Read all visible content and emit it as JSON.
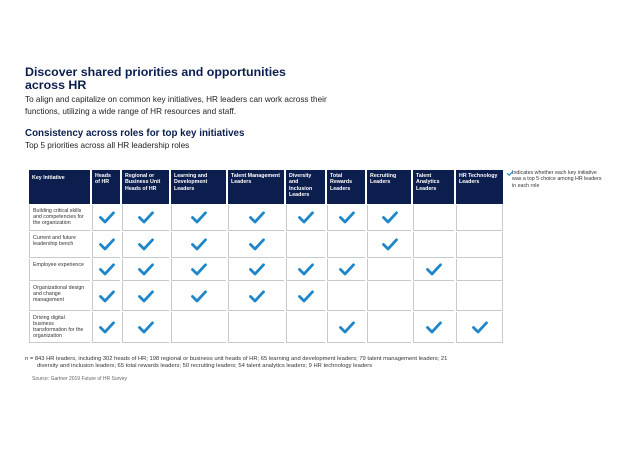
{
  "title": "Discover shared priorities and opportunities across HR",
  "intro": "To align and capitalize on common key initiatives, HR leaders can work across their functions, utilizing a wide range of HR resources and staff.",
  "subtitle": "Consistency across roles for top key initiatives",
  "subtext": "Top 5 priorities across all HR leadership roles",
  "table": {
    "corner": "Key Initiative",
    "columns": [
      "Heads of HR",
      "Regional or Business Unit Heads of HR",
      "Learning and Development Leaders",
      "Talent Management Leaders",
      "Diversity and Inclusion Leaders",
      "Total Rewards Leaders",
      "Recruiting Leaders",
      "Talent Analytics Leaders",
      "HR Technology Leaders"
    ],
    "rows": [
      {
        "label": "Building critical skills and competencies for the organization",
        "checks": [
          true,
          true,
          true,
          true,
          true,
          true,
          true,
          false,
          false
        ]
      },
      {
        "label": "Current and future leadership bench",
        "checks": [
          true,
          true,
          true,
          true,
          false,
          false,
          true,
          false,
          false
        ]
      },
      {
        "label": "Employee experience",
        "checks": [
          true,
          true,
          true,
          true,
          true,
          true,
          false,
          true,
          false
        ]
      },
      {
        "label": "Organizational design and change management",
        "checks": [
          true,
          true,
          true,
          true,
          true,
          false,
          false,
          false,
          false
        ]
      },
      {
        "label": "Driving digital business transformation for the organization",
        "checks": [
          true,
          true,
          false,
          false,
          false,
          true,
          false,
          true,
          true
        ]
      }
    ]
  },
  "legend": "Indicates whether each key initiative was a top 5 choice among HR leaders in each role",
  "footnote_line1": "n = 843 HR leaders, including 302 heads of HR; 198 regional or business unit heads of HR; 65 learning and development leaders; 79 talent management leaders; 21",
  "footnote_line2": "diversity and inclusion leaders; 65 total rewards leaders; 50 recruiting leaders; 54 talent analytics leaders; 9 HR technology leaders",
  "source": "Source: Gartner 2019 Future of HR Survey",
  "colors": {
    "navy": "#0c1e4d",
    "check": "#1f86c9",
    "border": "#c7c9cc"
  },
  "icons": {
    "check": "check-icon"
  }
}
